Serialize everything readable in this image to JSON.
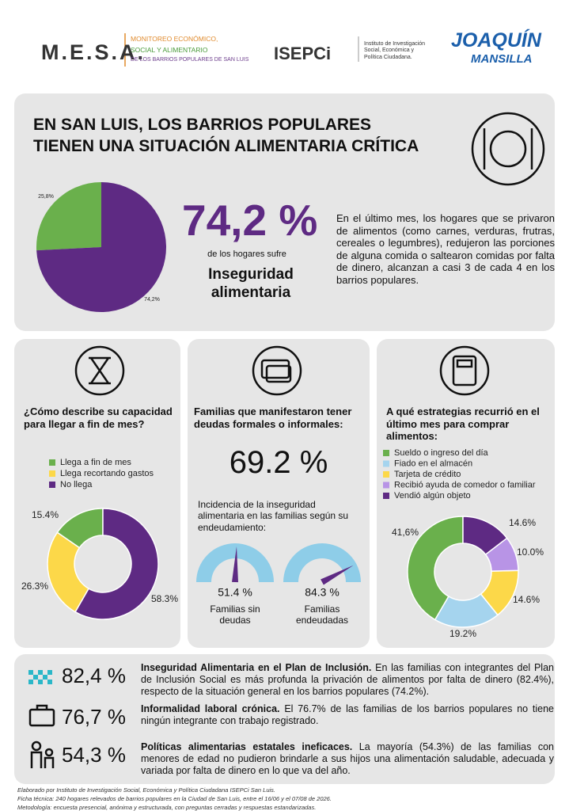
{
  "header": {
    "mesa": "M.E.S.A.",
    "mesa_lines": [
      "MONITOREO ECONÓMICO,",
      "SOCIAL Y ALIMENTARIO",
      "DE LOS BARRIOS POPULARES DE SAN LUIS"
    ],
    "isepci": "ISEPCi",
    "isepci_text": "Instituto de Investigación Social, Económica y Política Ciudadana.",
    "joaquin": "JOAQUÍN",
    "mansilla": "MANSILLA"
  },
  "hero": {
    "title": [
      "EN SAN LUIS, LOS BARRIOS POPULARES",
      "TIENEN UNA SITUACIÓN ALIMENTARIA CRÍTICA"
    ],
    "big": "74,2 %",
    "sub": "de los hogares sufre",
    "highlight": "Inseguridad alimentaria",
    "text": "En el último mes, los hogares que se privaron de alimentos (como carnes, verduras, frutras, cereales o legumbres), redujeron las porciones de alguna comida o saltearon comidas por falta de dinero, alcanzan a casi 3 de cada 4 en los barrios populares."
  },
  "cards": [
    {
      "title": "¿Cómo describe su capacidad para llegar a fin de mes?"
    },
    {
      "title": "Familias que manifestaron tener deudas formales o informales:",
      "big": "69.2 %",
      "text": "Incidencia de la inseguridad alimentaria en las familias según su endeudamiento:"
    },
    {
      "title": "A qué estrategias recurrió en el último mes para comprar alimentos:"
    }
  ],
  "chart_data": [
    {
      "type": "pie",
      "categories": [
        null,
        null
      ],
      "values": [
        25.8,
        74.2
      ],
      "value_labels": [
        "25,8%",
        "74,2%"
      ],
      "colors": [
        "#6ab04c",
        "#5e2a83"
      ]
    },
    {
      "type": "donut",
      "categories": [
        "Llega a fin de mes",
        "Llega recortando gastos",
        "No llega"
      ],
      "values": [
        15.4,
        26.3,
        58.3
      ],
      "value_labels": [
        "15.4%",
        "26.3%",
        "58.3%"
      ],
      "colors": [
        "#6ab04c",
        "#fcd849",
        "#5e2a83"
      ]
    },
    {
      "type": "gauge",
      "categories": [
        "Familias sin deudas",
        "Familias endeudadas"
      ],
      "values": [
        51.4,
        84.3
      ],
      "value_labels": [
        "51.4 %",
        "84.3 %"
      ],
      "ylim": [
        0,
        100
      ],
      "color": "#8ecde8",
      "needle_color": "#5e2a83"
    },
    {
      "type": "donut",
      "categories": [
        "Sueldo o ingreso del día",
        "Fiado en el almacén",
        "Tarjeta de crédito",
        "Recibió ayuda de comedor o familiar",
        "Vendió algún objeto"
      ],
      "values": [
        41.6,
        19.2,
        14.6,
        10.0,
        14.6
      ],
      "value_labels": [
        "41,6%",
        "19.2%",
        "14.6%",
        "10.0%",
        "14.6%"
      ],
      "colors": [
        "#6ab04c",
        "#a5d4ee",
        "#fcd849",
        "#b894e6",
        "#5e2a83"
      ]
    }
  ],
  "rows": [
    {
      "value": "82,4 %",
      "title": "Inseguridad Alimentaria en el Plan de Inclusión.",
      "text": "En las familias con integrantes del Plan de Inclusión Social es más profunda la privación de alimentos por falta de dinero (82.4%), respecto de la situación general en los barrios populares (74.2%)."
    },
    {
      "value": "76,7 %",
      "title": "Informalidad laboral crónica.",
      "text": "El 76.7% de las familias de los barrios populares no tiene ningún integrante con trabajo registrado."
    },
    {
      "value": "54,3 %",
      "title": "Políticas alimentarias estatales ineficaces.",
      "text": "La mayoría (54.3%) de las familias con menores de edad no pudieron brindarle a sus hijos una alimentación saludable, adecuada y variada por falta de dinero en lo que va del año."
    }
  ],
  "footer": [
    "Elaborado por Instituto de Investigación Social, Económica y Política Ciudadana ISEPCi San Luis.",
    "Ficha técnica: 240 hogares relevados de barrios populares en la Ciudad de San Luis, entre el 16/06 y el 07/08 de 2026.",
    "Metodología: encuesta presencial, anónima y estructurada, con preguntas cerradas y respuestas estandarizadas."
  ]
}
